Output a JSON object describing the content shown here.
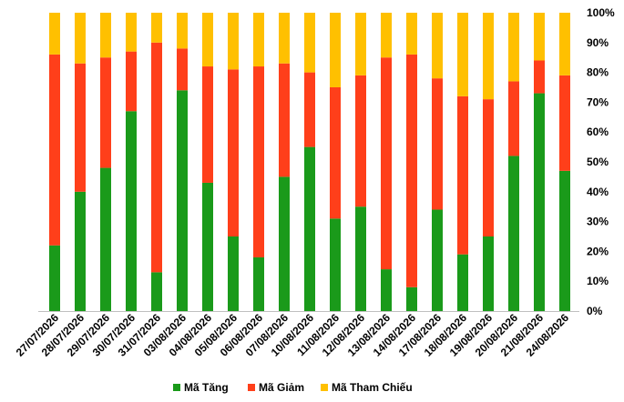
{
  "chart_data": {
    "type": "bar",
    "stacked": true,
    "percent_stacked": true,
    "categories": [
      "27/07/2026",
      "28/07/2026",
      "29/07/2026",
      "30/07/2026",
      "31/07/2026",
      "03/08/2026",
      "04/08/2026",
      "05/08/2026",
      "06/08/2026",
      "07/08/2026",
      "10/08/2026",
      "11/08/2026",
      "12/08/2026",
      "13/08/2026",
      "14/08/2026",
      "17/08/2026",
      "18/08/2026",
      "19/08/2026",
      "20/08/2026",
      "21/08/2026",
      "24/08/2026"
    ],
    "series": [
      {
        "name": "Mã Tăng",
        "color": "#1a9a1a",
        "values": [
          0.22,
          0.4,
          0.48,
          0.67,
          0.13,
          0.74,
          0.43,
          0.25,
          0.18,
          0.45,
          0.55,
          0.31,
          0.35,
          0.14,
          0.08,
          0.34,
          0.19,
          0.25,
          0.52,
          0.73,
          0.47
        ]
      },
      {
        "name": "Mã Giảm",
        "color": "#ff3f1a",
        "values": [
          0.64,
          0.43,
          0.37,
          0.2,
          0.77,
          0.14,
          0.39,
          0.56,
          0.64,
          0.38,
          0.25,
          0.44,
          0.44,
          0.71,
          0.78,
          0.44,
          0.53,
          0.46,
          0.25,
          0.11,
          0.32
        ]
      },
      {
        "name": "Mã Tham Chiếu",
        "color": "#ffc000",
        "values": [
          0.14,
          0.17,
          0.15,
          0.13,
          0.1,
          0.12,
          0.18,
          0.19,
          0.18,
          0.17,
          0.2,
          0.25,
          0.21,
          0.15,
          0.14,
          0.22,
          0.28,
          0.29,
          0.23,
          0.16,
          0.21
        ]
      }
    ],
    "yticks": [
      "0%",
      "10%",
      "20%",
      "30%",
      "40%",
      "50%",
      "60%",
      "70%",
      "80%",
      "90%",
      "100%"
    ],
    "ylim": [
      0,
      1
    ],
    "y_axis_side": "right",
    "legend_position": "bottom-center",
    "grid": false
  }
}
